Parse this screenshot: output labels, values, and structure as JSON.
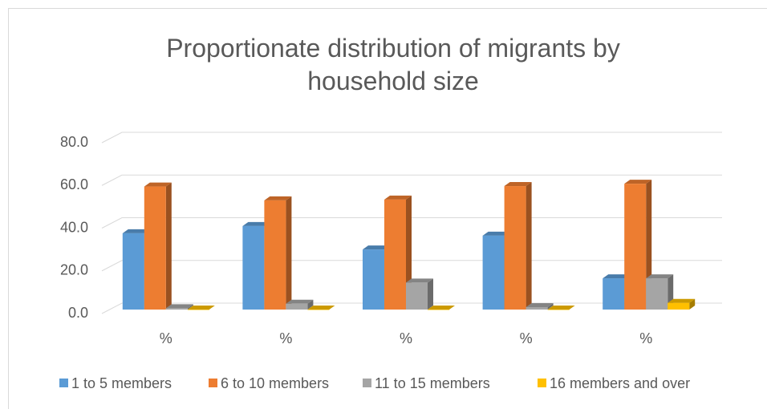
{
  "chart_data": {
    "type": "bar3d",
    "title": "Proportionate distribution of migrants by household size",
    "categories": [
      "%",
      "%",
      "%",
      "%",
      "%"
    ],
    "series": [
      {
        "name": "1 to 5 members",
        "color": "#5b9bd5",
        "values": [
          37.6,
          41.0,
          30.0,
          36.5,
          16.5
        ]
      },
      {
        "name": "6 to 10 members",
        "color": "#ed7d31",
        "values": [
          59.5,
          53.0,
          53.4,
          59.7,
          60.8
        ]
      },
      {
        "name": "11 to 15 members",
        "color": "#a5a5a5",
        "values": [
          2.5,
          4.6,
          14.5,
          3.0,
          16.5
        ]
      },
      {
        "name": "16 members and over",
        "color": "#ffc000",
        "values": [
          0.3,
          0.2,
          0.5,
          0.2,
          5.0
        ]
      }
    ],
    "ylim": [
      0,
      80
    ],
    "yticks": [
      {
        "value": 0,
        "label": "0.0"
      },
      {
        "value": 20,
        "label": "20.0"
      },
      {
        "value": 40,
        "label": "40.0"
      },
      {
        "value": 60,
        "label": "60.0"
      },
      {
        "value": 80,
        "label": "80.0"
      }
    ],
    "grid": true,
    "legend": "bottom"
  }
}
